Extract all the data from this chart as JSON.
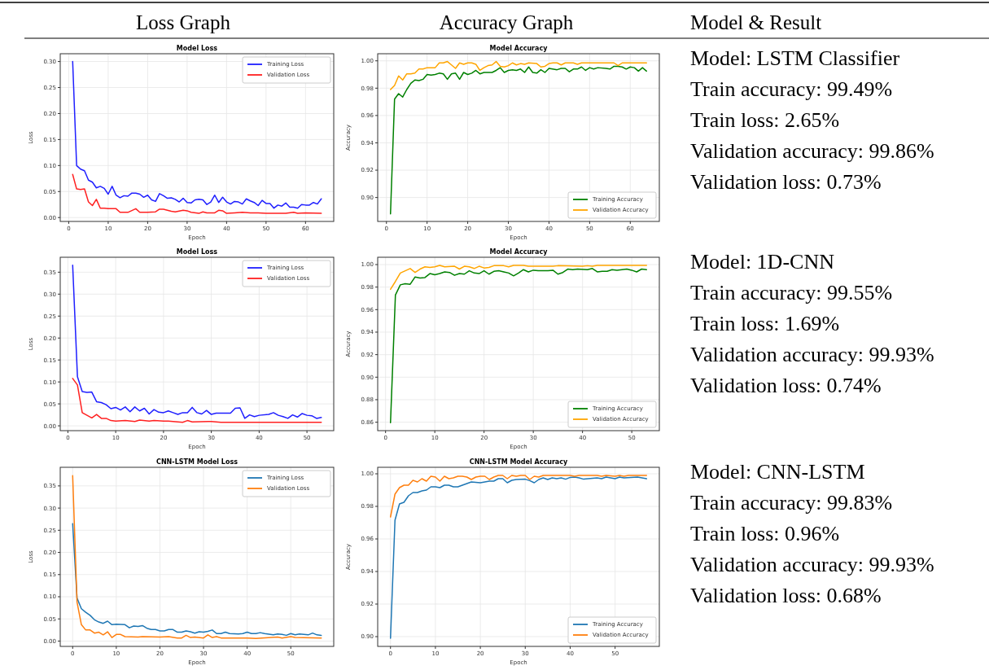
{
  "chart_data": [
    {
      "type": "other",
      "annotations": [
        "Loss Graph",
        "Accuracy Graph",
        "Model & Result"
      ]
    },
    {
      "type": "line",
      "title": "Model Loss",
      "xlabel": "Epoch",
      "ylabel": "Loss",
      "xlim": [
        -2.15,
        67.15
      ],
      "ylim": [
        -0.0075,
        0.315
      ],
      "xticks": [
        0,
        10,
        20,
        30,
        40,
        50,
        60
      ],
      "yticks": [
        {
          "value": 0,
          "label": "0.00"
        },
        {
          "value": 0.05,
          "label": "0.05"
        },
        {
          "value": 0.1,
          "label": "0.10"
        },
        {
          "value": 0.15,
          "label": "0.15"
        },
        {
          "value": 0.2,
          "label": "0.20"
        },
        {
          "value": 0.25,
          "label": "0.25"
        },
        {
          "value": 0.3,
          "label": "0.30"
        }
      ],
      "grid": true,
      "legend": "top right",
      "series": [
        {
          "name": "Training Loss",
          "color": "#1f1fff",
          "x": [
            1,
            2,
            3,
            4,
            5,
            6,
            7,
            8,
            9,
            10,
            11,
            12,
            13,
            14,
            15,
            16,
            17,
            18,
            19,
            20,
            21,
            22,
            23,
            24,
            25,
            26,
            27,
            28,
            29,
            30,
            31,
            32,
            33,
            34,
            35,
            36,
            37,
            38,
            39,
            40,
            41,
            42,
            43,
            44,
            45,
            46,
            47,
            48,
            49,
            50,
            51,
            52,
            53,
            54,
            55,
            56,
            57,
            58,
            59,
            60,
            61,
            62,
            63,
            64
          ],
          "values": [
            0.3,
            0.1,
            0.093,
            0.09,
            0.072,
            0.068,
            0.057,
            0.06,
            0.056,
            0.045,
            0.06,
            0.043,
            0.038,
            0.042,
            0.041,
            0.047,
            0.047,
            0.045,
            0.039,
            0.043,
            0.034,
            0.031,
            0.046,
            0.042,
            0.037,
            0.038,
            0.035,
            0.03,
            0.037,
            0.029,
            0.028,
            0.034,
            0.035,
            0.034,
            0.025,
            0.03,
            0.043,
            0.029,
            0.039,
            0.03,
            0.026,
            0.031,
            0.03,
            0.026,
            0.036,
            0.032,
            0.029,
            0.023,
            0.033,
            0.027,
            0.027,
            0.018,
            0.024,
            0.022,
            0.028,
            0.02,
            0.02,
            0.018,
            0.025,
            0.024,
            0.024,
            0.029,
            0.026,
            0.036
          ]
        },
        {
          "name": "Validation Loss",
          "color": "#ff2020",
          "x": [
            1,
            2,
            3,
            4,
            5,
            6,
            7,
            8,
            9,
            10,
            12,
            13,
            15,
            17,
            18,
            20,
            22,
            23,
            24,
            26,
            27,
            29,
            30,
            31,
            33,
            34,
            35,
            37,
            38,
            39,
            40,
            42,
            44,
            46,
            48,
            50,
            55,
            57,
            58,
            60,
            64
          ],
          "values": [
            0.083,
            0.055,
            0.054,
            0.055,
            0.03,
            0.023,
            0.035,
            0.018,
            0.018,
            0.017,
            0.017,
            0.01,
            0.01,
            0.017,
            0.01,
            0.01,
            0.011,
            0.016,
            0.016,
            0.012,
            0.011,
            0.014,
            0.013,
            0.01,
            0.008,
            0.011,
            0.009,
            0.009,
            0.014,
            0.013,
            0.008,
            0.009,
            0.01,
            0.009,
            0.009,
            0.008,
            0.008,
            0.01,
            0.008,
            0.009,
            0.008
          ]
        }
      ]
    },
    {
      "type": "line",
      "title": "Model Accuracy",
      "xlabel": "Epoch",
      "ylabel": "Accuracy",
      "xlim": [
        -2.15,
        67.15
      ],
      "ylim": [
        0.8825,
        1.0052
      ],
      "xticks": [
        0,
        10,
        20,
        30,
        40,
        50,
        60
      ],
      "yticks": [
        {
          "value": 0.9,
          "label": "0.90"
        },
        {
          "value": 0.92,
          "label": "0.92"
        },
        {
          "value": 0.94,
          "label": "0.94"
        },
        {
          "value": 0.96,
          "label": "0.96"
        },
        {
          "value": 0.98,
          "label": "0.98"
        },
        {
          "value": 1,
          "label": "1.00"
        }
      ],
      "grid": true,
      "legend": "bottom right",
      "series": [
        {
          "name": "Training Accuracy",
          "color": "#008000",
          "x": [
            1,
            2,
            3,
            4,
            5,
            6,
            7,
            8,
            9,
            10,
            11,
            12,
            13,
            14,
            15,
            16,
            17,
            18,
            19,
            20,
            21,
            22,
            23,
            24,
            26,
            27,
            28,
            29,
            30,
            31,
            32,
            33,
            34,
            35,
            36,
            37,
            38,
            39,
            40,
            42,
            43,
            44,
            45,
            46,
            47,
            48,
            49,
            50,
            51,
            52,
            54,
            55,
            56,
            57,
            58,
            59,
            60,
            61,
            62,
            63,
            64
          ],
          "values": [
            0.888,
            0.972,
            0.976,
            0.9735,
            0.979,
            0.9835,
            0.986,
            0.9855,
            0.9865,
            0.99,
            0.9895,
            0.99,
            0.991,
            0.9905,
            0.9865,
            0.9905,
            0.991,
            0.9865,
            0.9915,
            0.99,
            0.991,
            0.993,
            0.9905,
            0.9915,
            0.9915,
            0.993,
            0.995,
            0.9915,
            0.993,
            0.9935,
            0.993,
            0.994,
            0.9915,
            0.9955,
            0.9915,
            0.991,
            0.9935,
            0.9915,
            0.9945,
            0.9935,
            0.9945,
            0.9945,
            0.992,
            0.994,
            0.994,
            0.9955,
            0.993,
            0.995,
            0.994,
            0.995,
            0.9945,
            0.994,
            0.996,
            0.996,
            0.9955,
            0.994,
            0.9955,
            0.995,
            0.9925,
            0.995,
            0.9925
          ]
        },
        {
          "name": "Validation Accuracy",
          "color": "#ffa500",
          "x": [
            1,
            2,
            3,
            4,
            5,
            6,
            7,
            8,
            9,
            10,
            12,
            13,
            14,
            15,
            16,
            17,
            18,
            19,
            20,
            21,
            22,
            23,
            24,
            25,
            26,
            27,
            28,
            29,
            30,
            31,
            32,
            33,
            34,
            35,
            37,
            38,
            39,
            40,
            41,
            42,
            43,
            44,
            46,
            47,
            48,
            56,
            57,
            58,
            64
          ],
          "values": [
            0.979,
            0.982,
            0.989,
            0.986,
            0.9905,
            0.9905,
            0.991,
            0.994,
            0.994,
            0.995,
            0.995,
            0.9985,
            0.9985,
            0.9995,
            0.997,
            0.9945,
            0.9985,
            0.9975,
            0.9985,
            0.9985,
            0.9975,
            0.993,
            0.995,
            0.9965,
            0.997,
            0.9995,
            0.996,
            0.9955,
            0.9965,
            0.9985,
            0.997,
            0.998,
            0.9975,
            0.9985,
            0.998,
            0.9955,
            0.996,
            0.998,
            0.9985,
            0.9985,
            0.997,
            0.9985,
            0.9985,
            0.9975,
            0.9985,
            0.9985,
            0.9965,
            0.9985,
            0.9985
          ]
        }
      ]
    },
    {
      "type": "other",
      "annotations": [
        "Model: LSTM Classifier",
        "Train accuracy: 99.49%",
        "Train loss: 2.65%",
        "Validation accuracy: 99.86%",
        "Validation loss: 0.73%"
      ]
    },
    {
      "type": "line",
      "title": "Model Loss",
      "xlabel": "Epoch",
      "ylabel": "Loss",
      "xlim": [
        -1.6,
        55.6
      ],
      "ylim": [
        -0.011,
        0.384
      ],
      "xticks": [
        0,
        10,
        20,
        30,
        40,
        50
      ],
      "yticks": [
        {
          "value": 0,
          "label": "0.00"
        },
        {
          "value": 0.05,
          "label": "0.05"
        },
        {
          "value": 0.1,
          "label": "0.10"
        },
        {
          "value": 0.15,
          "label": "0.15"
        },
        {
          "value": 0.2,
          "label": "0.20"
        },
        {
          "value": 0.25,
          "label": "0.25"
        },
        {
          "value": 0.3,
          "label": "0.30"
        },
        {
          "value": 0.35,
          "label": "0.35"
        }
      ],
      "grid": true,
      "legend": "top right",
      "series": [
        {
          "name": "Training Loss",
          "color": "#1f1fff",
          "x": [
            1,
            2,
            3,
            4,
            5,
            6,
            7,
            8,
            9,
            10,
            11,
            12,
            13,
            14,
            15,
            16,
            17,
            18,
            19,
            20,
            21,
            22,
            23,
            24,
            25,
            26,
            27,
            28,
            29,
            30,
            31,
            33,
            34,
            35,
            36,
            37,
            38,
            39,
            40,
            42,
            43,
            44,
            45,
            46,
            47,
            48,
            49,
            50,
            51,
            52,
            53
          ],
          "values": [
            0.366,
            0.112,
            0.078,
            0.076,
            0.077,
            0.055,
            0.053,
            0.048,
            0.039,
            0.042,
            0.036,
            0.043,
            0.032,
            0.043,
            0.034,
            0.04,
            0.027,
            0.037,
            0.031,
            0.03,
            0.034,
            0.03,
            0.026,
            0.03,
            0.03,
            0.042,
            0.03,
            0.027,
            0.035,
            0.026,
            0.029,
            0.029,
            0.029,
            0.04,
            0.041,
            0.017,
            0.025,
            0.021,
            0.024,
            0.026,
            0.03,
            0.024,
            0.021,
            0.017,
            0.025,
            0.02,
            0.028,
            0.024,
            0.023,
            0.017,
            0.019
          ]
        },
        {
          "name": "Validation Loss",
          "color": "#ff2020",
          "x": [
            1,
            2,
            3,
            4,
            5,
            6,
            7,
            8,
            9,
            10,
            12,
            14,
            15,
            17,
            18,
            20,
            21,
            23,
            24,
            25,
            26,
            30,
            32,
            40,
            53
          ],
          "values": [
            0.108,
            0.093,
            0.03,
            0.024,
            0.018,
            0.026,
            0.017,
            0.017,
            0.012,
            0.011,
            0.012,
            0.01,
            0.013,
            0.011,
            0.012,
            0.011,
            0.011,
            0.009,
            0.008,
            0.012,
            0.009,
            0.01,
            0.008,
            0.008,
            0.008
          ]
        }
      ]
    },
    {
      "type": "line",
      "title": "Model Accuracy",
      "xlabel": "Epoch",
      "ylabel": "Accuracy",
      "xlim": [
        -1.6,
        55.6
      ],
      "ylim": [
        0.8525,
        1.0065
      ],
      "xticks": [
        0,
        10,
        20,
        30,
        40,
        50
      ],
      "yticks": [
        {
          "value": 0.86,
          "label": "0.86"
        },
        {
          "value": 0.88,
          "label": "0.88"
        },
        {
          "value": 0.9,
          "label": "0.90"
        },
        {
          "value": 0.92,
          "label": "0.92"
        },
        {
          "value": 0.94,
          "label": "0.94"
        },
        {
          "value": 0.96,
          "label": "0.96"
        },
        {
          "value": 0.98,
          "label": "0.98"
        },
        {
          "value": 1,
          "label": "1.00"
        }
      ],
      "grid": true,
      "legend": "bottom right",
      "series": [
        {
          "name": "Training Accuracy",
          "color": "#008000",
          "x": [
            1,
            2,
            3,
            4,
            5,
            6,
            7,
            8,
            9,
            10,
            11,
            12,
            13,
            14,
            15,
            16,
            17,
            18,
            19,
            20,
            21,
            22,
            23,
            24,
            25,
            26,
            27,
            28,
            29,
            30,
            31,
            33,
            34,
            35,
            36,
            37,
            38,
            39,
            41,
            42,
            43,
            44,
            45,
            46,
            47,
            49,
            50,
            51,
            52,
            53
          ],
          "values": [
            0.8595,
            0.973,
            0.982,
            0.983,
            0.9825,
            0.989,
            0.988,
            0.9885,
            0.992,
            0.991,
            0.992,
            0.9935,
            0.993,
            0.9905,
            0.992,
            0.9915,
            0.9945,
            0.9925,
            0.992,
            0.9945,
            0.9915,
            0.994,
            0.9945,
            0.9935,
            0.9925,
            0.99,
            0.9925,
            0.9955,
            0.9935,
            0.995,
            0.9945,
            0.9945,
            0.995,
            0.9915,
            0.993,
            0.996,
            0.9955,
            0.996,
            0.9955,
            0.9965,
            0.9935,
            0.994,
            0.994,
            0.9955,
            0.995,
            0.996,
            0.995,
            0.9935,
            0.996,
            0.9955
          ]
        },
        {
          "name": "Validation Accuracy",
          "color": "#ffa500",
          "x": [
            1,
            2,
            3,
            4,
            5,
            6,
            7,
            8,
            9,
            10,
            11,
            12,
            14,
            15,
            16,
            17,
            18,
            19,
            20,
            21,
            22,
            24,
            25,
            26,
            28,
            29,
            34,
            35,
            40,
            41,
            42,
            43,
            53
          ],
          "values": [
            0.978,
            0.985,
            0.9925,
            0.9945,
            0.9965,
            0.993,
            0.996,
            0.998,
            0.9975,
            0.998,
            0.9992,
            0.998,
            0.9985,
            0.996,
            0.9985,
            0.998,
            0.9965,
            0.9985,
            0.997,
            0.9975,
            0.999,
            0.999,
            0.998,
            0.9993,
            0.9993,
            0.9985,
            0.9985,
            0.999,
            0.9985,
            0.999,
            0.9985,
            0.9993,
            0.9993
          ]
        }
      ]
    },
    {
      "type": "other",
      "annotations": [
        "Model: 1D-CNN",
        "Train accuracy: 99.55%",
        "Train loss: 1.69%",
        "Validation accuracy: 99.93%",
        "Validation loss: 0.74%"
      ]
    },
    {
      "type": "line",
      "title": "CNN-LSTM Model Loss",
      "xlabel": "Epoch",
      "ylabel": "Loss",
      "xlim": [
        -2.85,
        59.85
      ],
      "ylim": [
        -0.012,
        0.392
      ],
      "xticks": [
        0,
        10,
        20,
        30,
        40,
        50
      ],
      "yticks": [
        {
          "value": 0,
          "label": "0.00"
        },
        {
          "value": 0.05,
          "label": "0.05"
        },
        {
          "value": 0.1,
          "label": "0.10"
        },
        {
          "value": 0.15,
          "label": "0.15"
        },
        {
          "value": 0.2,
          "label": "0.20"
        },
        {
          "value": 0.25,
          "label": "0.25"
        },
        {
          "value": 0.3,
          "label": "0.30"
        },
        {
          "value": 0.35,
          "label": "0.35"
        }
      ],
      "grid": true,
      "legend": "top right",
      "series": [
        {
          "name": "Training Loss",
          "color": "#1f77b4",
          "x": [
            0,
            1,
            2,
            3,
            4,
            5,
            6,
            7,
            8,
            9,
            10,
            12,
            13,
            14,
            15,
            16,
            17,
            18,
            19,
            20,
            21,
            22,
            23,
            24,
            25,
            26,
            27,
            28,
            29,
            30,
            31,
            32,
            33,
            34,
            35,
            36,
            38,
            39,
            40,
            41,
            42,
            43,
            44,
            46,
            47,
            48,
            49,
            50,
            51,
            52,
            54,
            55,
            56,
            57
          ],
          "values": [
            0.265,
            0.097,
            0.073,
            0.065,
            0.058,
            0.048,
            0.043,
            0.04,
            0.045,
            0.037,
            0.038,
            0.037,
            0.03,
            0.034,
            0.033,
            0.035,
            0.029,
            0.026,
            0.026,
            0.023,
            0.023,
            0.026,
            0.026,
            0.02,
            0.02,
            0.023,
            0.021,
            0.018,
            0.021,
            0.02,
            0.022,
            0.025,
            0.017,
            0.017,
            0.02,
            0.017,
            0.016,
            0.017,
            0.02,
            0.017,
            0.017,
            0.019,
            0.017,
            0.014,
            0.016,
            0.015,
            0.013,
            0.017,
            0.014,
            0.016,
            0.014,
            0.018,
            0.014,
            0.013
          ]
        },
        {
          "name": "Validation Loss",
          "color": "#ff7f0e",
          "x": [
            0,
            1,
            2,
            3,
            4,
            5,
            6,
            7,
            8,
            9,
            10,
            11,
            12,
            15,
            16,
            20,
            22,
            24,
            25,
            26,
            27,
            28,
            30,
            31,
            32,
            33,
            34,
            40,
            42,
            47,
            48,
            50,
            51,
            57
          ],
          "values": [
            0.373,
            0.088,
            0.037,
            0.025,
            0.025,
            0.018,
            0.02,
            0.014,
            0.021,
            0.008,
            0.015,
            0.015,
            0.01,
            0.009,
            0.01,
            0.009,
            0.01,
            0.007,
            0.007,
            0.013,
            0.008,
            0.009,
            0.007,
            0.014,
            0.008,
            0.01,
            0.007,
            0.007,
            0.006,
            0.009,
            0.007,
            0.01,
            0.008,
            0.007
          ]
        }
      ]
    },
    {
      "type": "line",
      "title": "CNN-LSTM Model Accuracy",
      "xlabel": "Epoch",
      "ylabel": "Accuracy",
      "xlim": [
        -2.85,
        59.85
      ],
      "ylim": [
        0.894,
        1.004
      ],
      "xticks": [
        0,
        10,
        20,
        30,
        40,
        50
      ],
      "yticks": [
        {
          "value": 0.9,
          "label": "0.90"
        },
        {
          "value": 0.92,
          "label": "0.92"
        },
        {
          "value": 0.94,
          "label": "0.94"
        },
        {
          "value": 0.96,
          "label": "0.96"
        },
        {
          "value": 0.98,
          "label": "0.98"
        },
        {
          "value": 1,
          "label": "1.00"
        }
      ],
      "grid": true,
      "legend": "bottom right",
      "series": [
        {
          "name": "Training Accuracy",
          "color": "#1f77b4",
          "x": [
            0,
            1,
            2,
            3,
            4,
            5,
            6,
            7,
            8,
            9,
            10,
            11,
            12,
            13,
            14,
            15,
            16,
            17,
            18,
            20,
            21,
            22,
            23,
            24,
            25,
            26,
            27,
            28,
            30,
            31,
            32,
            33,
            34,
            35,
            36,
            37,
            38,
            39,
            40,
            41,
            42,
            43,
            44,
            46,
            47,
            48,
            50,
            51,
            52,
            55,
            56,
            57
          ],
          "values": [
            0.899,
            0.9715,
            0.9815,
            0.9825,
            0.9865,
            0.9885,
            0.9885,
            0.9895,
            0.99,
            0.992,
            0.992,
            0.9915,
            0.993,
            0.993,
            0.992,
            0.992,
            0.993,
            0.994,
            0.995,
            0.9945,
            0.995,
            0.9955,
            0.9955,
            0.997,
            0.997,
            0.9945,
            0.996,
            0.9965,
            0.9967,
            0.9958,
            0.9945,
            0.9965,
            0.9975,
            0.9965,
            0.9975,
            0.997,
            0.9975,
            0.9967,
            0.9978,
            0.998,
            0.9975,
            0.9967,
            0.997,
            0.9975,
            0.997,
            0.998,
            0.997,
            0.998,
            0.9975,
            0.998,
            0.9975,
            0.997
          ]
        },
        {
          "name": "Validation Accuracy",
          "color": "#ff7f0e",
          "x": [
            0,
            1,
            2,
            3,
            4,
            5,
            6,
            7,
            8,
            9,
            10,
            11,
            12,
            13,
            14,
            15,
            16,
            17,
            18,
            19,
            20,
            21,
            22,
            23,
            24,
            25,
            26,
            27,
            28,
            29,
            30,
            31,
            32,
            33,
            34,
            40,
            41,
            42,
            46,
            47,
            48,
            50,
            51,
            52,
            53,
            57
          ],
          "values": [
            0.9735,
            0.9875,
            0.9915,
            0.993,
            0.993,
            0.996,
            0.995,
            0.997,
            0.9955,
            0.9985,
            0.998,
            0.9955,
            0.9985,
            0.997,
            0.9975,
            0.9985,
            0.9985,
            0.998,
            0.9965,
            0.998,
            0.9985,
            0.9985,
            0.9965,
            0.998,
            0.999,
            0.999,
            0.997,
            0.999,
            0.9985,
            0.999,
            0.999,
            0.9965,
            0.9985,
            0.998,
            0.999,
            0.999,
            0.9985,
            0.999,
            0.999,
            0.9985,
            0.999,
            0.9985,
            0.999,
            0.9985,
            0.999,
            0.999
          ]
        }
      ]
    },
    {
      "type": "other",
      "annotations": [
        "Model: CNN-LSTM",
        "Train accuracy: 99.83%",
        "Train loss: 0.96%",
        "Validation accuracy: 99.93%",
        "Validation loss: 0.68%"
      ]
    }
  ]
}
